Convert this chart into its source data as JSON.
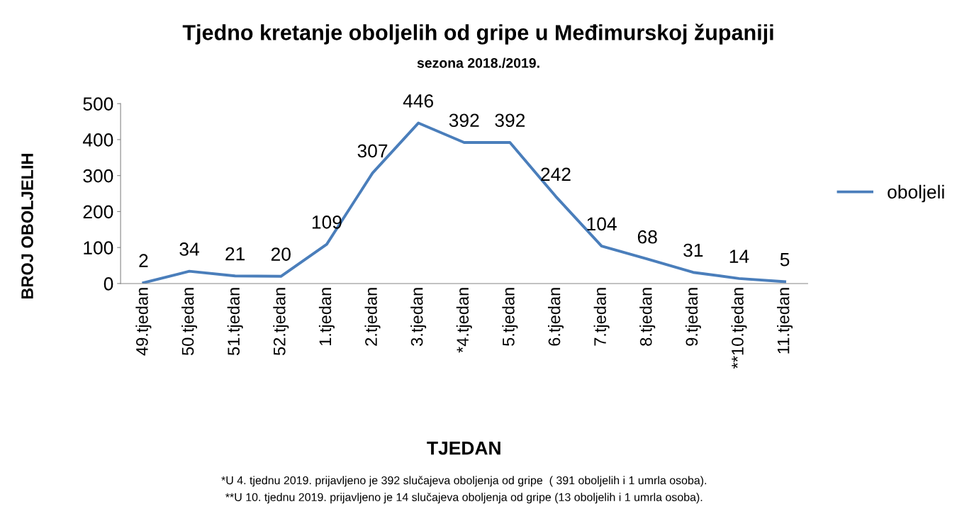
{
  "chart_data": {
    "type": "line",
    "title": "Tjedno kretanje oboljelih od gripe u Međimurskoj županiji",
    "subtitle": "sezona 2018./2019.",
    "xlabel": "TJEDAN",
    "ylabel": "BROJ OBOLJELIH",
    "categories": [
      "49.tjedan",
      "50.tjedan",
      "51.tjedan",
      "52.tjedan",
      "1.tjedan",
      "2.tjedan",
      "3.tjedan",
      "*4.tjedan",
      "5.tjedan",
      "6.tjedan",
      "7.tjedan",
      "8.tjedan",
      "9.tjedan",
      "**10.tjedan",
      "11.tjedan"
    ],
    "series": [
      {
        "name": "oboljeli",
        "color": "#4a7ebb",
        "values": [
          2,
          34,
          21,
          20,
          109,
          307,
          446,
          392,
          392,
          242,
          104,
          68,
          31,
          14,
          5
        ]
      }
    ],
    "ylim": [
      0,
      500
    ],
    "yticks": [
      0,
      100,
      200,
      300,
      400,
      500
    ],
    "grid": false,
    "legend": "right",
    "data_labels": true,
    "marker": "none",
    "line_style": "solid",
    "annotations": [
      "*U 4. tjednu 2019. prijavljeno je 392 slučajeva oboljenja od gripe  ( 391 oboljelih i 1 umrla osoba).",
      "**U 10. tjednu 2019. prijavljeno je 14 slučajeva oboljenja od gripe (13 oboljelih i 1 umrla osoba)."
    ]
  }
}
